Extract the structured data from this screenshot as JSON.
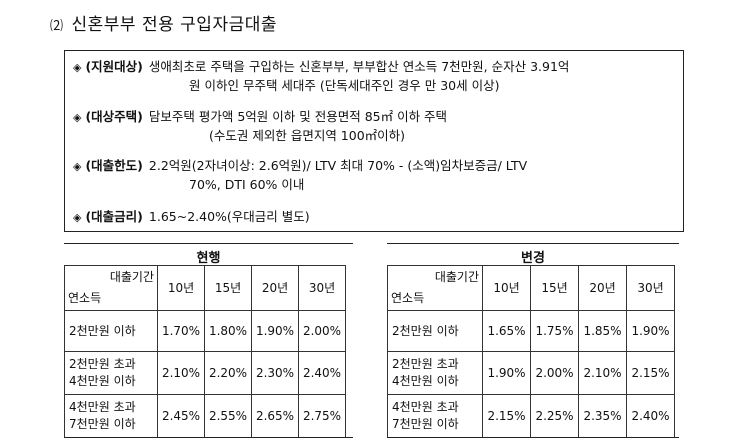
{
  "title": {
    "number": "⑵",
    "text": "신혼부부 전용 구입자금대출"
  },
  "items": [
    {
      "bullet": "◈",
      "label": "(지원대상)",
      "line1": "생애최초로 주택을 구입하는 신혼부부, 부부합산 연소득 7천만원, 순자산 3.91억",
      "line2": "원 이하인 무주택 세대주 (단독세대주인 경우 만 30세 이상)"
    },
    {
      "bullet": "◈",
      "label": "(대상주택)",
      "line1": "담보주택 평가액 5억원 이하 및 전용면적 85㎡ 이하 주택",
      "line2": "(수도권 제외한 읍면지역 100㎡이하)"
    },
    {
      "bullet": "◈",
      "label": "(대출한도)",
      "line1": "2.2억원(2자녀이상: 2.6억원)/ LTV 최대 70% - (소액)임차보증금/ LTV",
      "line2": "70%, DTI 60% 이내"
    },
    {
      "bullet": "◈",
      "label": "(대출금리)",
      "line1": "1.65~2.40%(우대금리 별도)",
      "line2": ""
    }
  ],
  "tables": [
    {
      "caption": "현행",
      "header_top": "대출기간",
      "header_bottom": "연소득",
      "columns": [
        "10년",
        "15년",
        "20년",
        "30년"
      ],
      "rows": [
        {
          "label1": "2천만원 이하",
          "label2": "",
          "values": [
            "1.70%",
            "1.80%",
            "1.90%",
            "2.00%"
          ]
        },
        {
          "label1": "2천만원 초과",
          "label2": "4천만원 이하",
          "values": [
            "2.10%",
            "2.20%",
            "2.30%",
            "2.40%"
          ]
        },
        {
          "label1": "4천만원 초과",
          "label2": "7천만원 이하",
          "values": [
            "2.45%",
            "2.55%",
            "2.65%",
            "2.75%"
          ]
        }
      ]
    },
    {
      "caption": "변경",
      "header_top": "대출기간",
      "header_bottom": "연소득",
      "columns": [
        "10년",
        "15년",
        "20년",
        "30년"
      ],
      "rows": [
        {
          "label1": "2천만원 이하",
          "label2": "",
          "values": [
            "1.65%",
            "1.75%",
            "1.85%",
            "1.90%"
          ]
        },
        {
          "label1": "2천만원 초과",
          "label2": "4천만원 이하",
          "values": [
            "1.90%",
            "2.00%",
            "2.10%",
            "2.15%"
          ]
        },
        {
          "label1": "4천만원 초과",
          "label2": "7천만원 이하",
          "values": [
            "2.15%",
            "2.25%",
            "2.35%",
            "2.40%"
          ]
        }
      ]
    }
  ]
}
